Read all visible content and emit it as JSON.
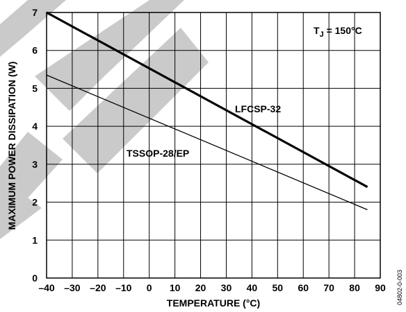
{
  "chart_data": {
    "type": "line",
    "title": "",
    "xlabel": "TEMPERATURE (°C)",
    "ylabel": "MAXIMUM POWER DISSIPATION (W)",
    "xlim": [
      -40,
      90
    ],
    "ylim": [
      0,
      7
    ],
    "grid": true,
    "x_ticks": [
      "–40",
      "–30",
      "–20",
      "–10",
      "0",
      "10",
      "20",
      "30",
      "40",
      "50",
      "60",
      "70",
      "80",
      "90"
    ],
    "y_ticks": [
      "0",
      "1",
      "2",
      "3",
      "4",
      "5",
      "6",
      "7"
    ],
    "series": [
      {
        "name": "LFCSP-32",
        "x": [
          -40,
          85
        ],
        "y": [
          7.0,
          2.4
        ]
      },
      {
        "name": "TSSOP-28/EP",
        "x": [
          -40,
          85
        ],
        "y": [
          5.35,
          1.8
        ]
      }
    ],
    "annotation": {
      "main": "T",
      "sub": "J",
      "rest": " = 150°C"
    },
    "reference_code": "04802-0-003",
    "colors": {
      "line": "#000000",
      "grid": "#000000",
      "watermark": "#c8c8c8"
    }
  }
}
